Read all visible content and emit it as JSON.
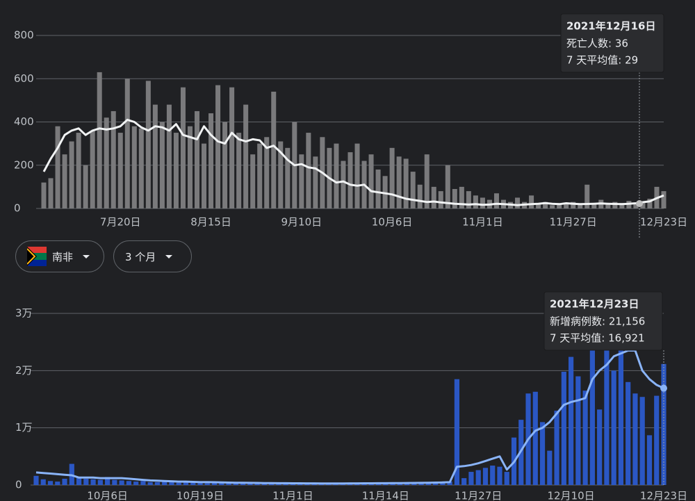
{
  "chart_data": [
    {
      "type": "bar",
      "categories": [
        null,
        null,
        null,
        null,
        null,
        null,
        null,
        null,
        null,
        null,
        null,
        "7月20日",
        null,
        null,
        null,
        null,
        null,
        null,
        null,
        null,
        null,
        null,
        null,
        null,
        "8月15日",
        null,
        null,
        null,
        null,
        null,
        null,
        null,
        null,
        null,
        null,
        null,
        null,
        "9月10日",
        null,
        null,
        null,
        null,
        null,
        null,
        null,
        null,
        null,
        null,
        null,
        null,
        "10月6日",
        null,
        null,
        null,
        null,
        null,
        null,
        null,
        null,
        null,
        null,
        null,
        null,
        "11月1日",
        null,
        null,
        null,
        null,
        null,
        null,
        null,
        null,
        null,
        null,
        null,
        null,
        "11月27日",
        null,
        null,
        null,
        null,
        null,
        null,
        null,
        null,
        null,
        null,
        null,
        null,
        "12月23日"
      ],
      "series": [
        {
          "type": "bar",
          "color": "#7a7a7c",
          "values": [
            120,
            140,
            380,
            250,
            310,
            350,
            200,
            360,
            630,
            420,
            450,
            350,
            600,
            380,
            370,
            590,
            480,
            400,
            480,
            350,
            560,
            380,
            450,
            300,
            440,
            570,
            400,
            560,
            350,
            480,
            250,
            300,
            330,
            540,
            310,
            280,
            400,
            250,
            350,
            240,
            330,
            280,
            300,
            220,
            260,
            300,
            220,
            250,
            180,
            150,
            280,
            240,
            230,
            170,
            110,
            250,
            100,
            80,
            200,
            90,
            100,
            80,
            60,
            50,
            40,
            70,
            40,
            30,
            50,
            30,
            60,
            20,
            30,
            15,
            25,
            20,
            30,
            20,
            110,
            25,
            40,
            20,
            30,
            25,
            35,
            20,
            25,
            45,
            100,
            80
          ]
        },
        {
          "type": "line",
          "color": "#f1f3f4",
          "values": [
            170,
            230,
            280,
            340,
            360,
            370,
            340,
            360,
            370,
            365,
            370,
            380,
            410,
            400,
            375,
            360,
            380,
            375,
            360,
            390,
            340,
            330,
            320,
            380,
            340,
            310,
            300,
            350,
            320,
            310,
            320,
            315,
            280,
            290,
            260,
            225,
            200,
            205,
            190,
            185,
            165,
            140,
            120,
            125,
            110,
            105,
            110,
            80,
            75,
            70,
            65,
            55,
            45,
            40,
            35,
            30,
            32,
            28,
            25,
            22,
            20,
            18,
            20,
            17,
            18,
            22,
            20,
            18,
            15,
            18,
            20,
            22,
            25,
            22,
            20,
            24,
            22,
            20,
            21,
            22,
            23,
            22,
            21,
            20,
            22,
            24,
            29,
            33,
            48,
            60
          ]
        }
      ],
      "ylim": [
        0,
        800
      ],
      "yticks": [
        0,
        200,
        400,
        600,
        800
      ],
      "grid": true,
      "tooltip": {
        "title": "2021年12月16日",
        "lines": [
          "死亡人数: 36",
          "7 天平均值: 29"
        ]
      }
    },
    {
      "type": "bar",
      "categories": [
        null,
        null,
        null,
        null,
        null,
        null,
        null,
        null,
        null,
        null,
        "10月6日",
        null,
        null,
        null,
        null,
        null,
        null,
        null,
        null,
        null,
        null,
        null,
        null,
        "10月19日",
        null,
        null,
        null,
        null,
        null,
        null,
        null,
        null,
        null,
        null,
        null,
        null,
        "11月1日",
        null,
        null,
        null,
        null,
        null,
        null,
        null,
        null,
        null,
        null,
        null,
        null,
        "11月14日",
        null,
        null,
        null,
        null,
        null,
        null,
        null,
        null,
        null,
        null,
        null,
        null,
        "11月27日",
        null,
        null,
        null,
        null,
        null,
        null,
        null,
        null,
        null,
        null,
        null,
        null,
        "12月10日",
        null,
        null,
        null,
        null,
        null,
        null,
        null,
        null,
        null,
        null,
        null,
        null,
        "12月23日"
      ],
      "series": [
        {
          "type": "bar",
          "color": "#2b57c4",
          "values": [
            1600,
            1000,
            700,
            600,
            1100,
            3700,
            1300,
            1100,
            1000,
            900,
            1400,
            900,
            800,
            700,
            600,
            700,
            500,
            500,
            600,
            500,
            400,
            450,
            400,
            350,
            300,
            400,
            350,
            300,
            300,
            250,
            300,
            250,
            250,
            200,
            300,
            280,
            250,
            220,
            200,
            300,
            250,
            220,
            200,
            230,
            250,
            300,
            250,
            280,
            300,
            350,
            400,
            300,
            350,
            300,
            400,
            350,
            500,
            450,
            600,
            18500,
            1200,
            2300,
            2600,
            3000,
            3400,
            3200,
            2300,
            8300,
            11400,
            16000,
            16300,
            11000,
            6000,
            13000,
            19800,
            22400,
            19000,
            16500,
            24000,
            13200,
            26000,
            20000,
            24500,
            18000,
            16000,
            15400,
            8700,
            15600,
            21156
          ]
        },
        {
          "type": "line",
          "color": "#8ab4f8",
          "values": [
            2200,
            2100,
            2000,
            1900,
            1800,
            1700,
            1300,
            1300,
            1300,
            1200,
            1200,
            1200,
            1200,
            1100,
            1000,
            900,
            800,
            750,
            700,
            650,
            600,
            600,
            550,
            500,
            500,
            480,
            450,
            420,
            400,
            400,
            380,
            360,
            340,
            330,
            320,
            310,
            300,
            300,
            290,
            290,
            280,
            280,
            280,
            280,
            290,
            290,
            300,
            300,
            310,
            320,
            330,
            340,
            350,
            360,
            380,
            400,
            420,
            450,
            500,
            3200,
            3300,
            3500,
            3800,
            4200,
            4600,
            5000,
            2700,
            4000,
            6000,
            8000,
            9500,
            10000,
            11000,
            12500,
            14000,
            14500,
            14800,
            15200,
            18500,
            20000,
            21000,
            22500,
            23000,
            23500,
            23500,
            20000,
            18500,
            17500,
            16921
          ]
        }
      ],
      "ylim": [
        0,
        30000
      ],
      "yticks": [
        0,
        {
          "value": 10000,
          "label": "1万"
        },
        {
          "value": 20000,
          "label": "2万"
        },
        {
          "value": 30000,
          "label": "3万"
        }
      ],
      "grid": true,
      "tooltip": {
        "title": "2021年12月23日",
        "lines": [
          "新增病例数: 21,156",
          "7 天平均值: 16,921"
        ]
      }
    }
  ],
  "controls": {
    "country": "南非",
    "range": "3 个月"
  }
}
